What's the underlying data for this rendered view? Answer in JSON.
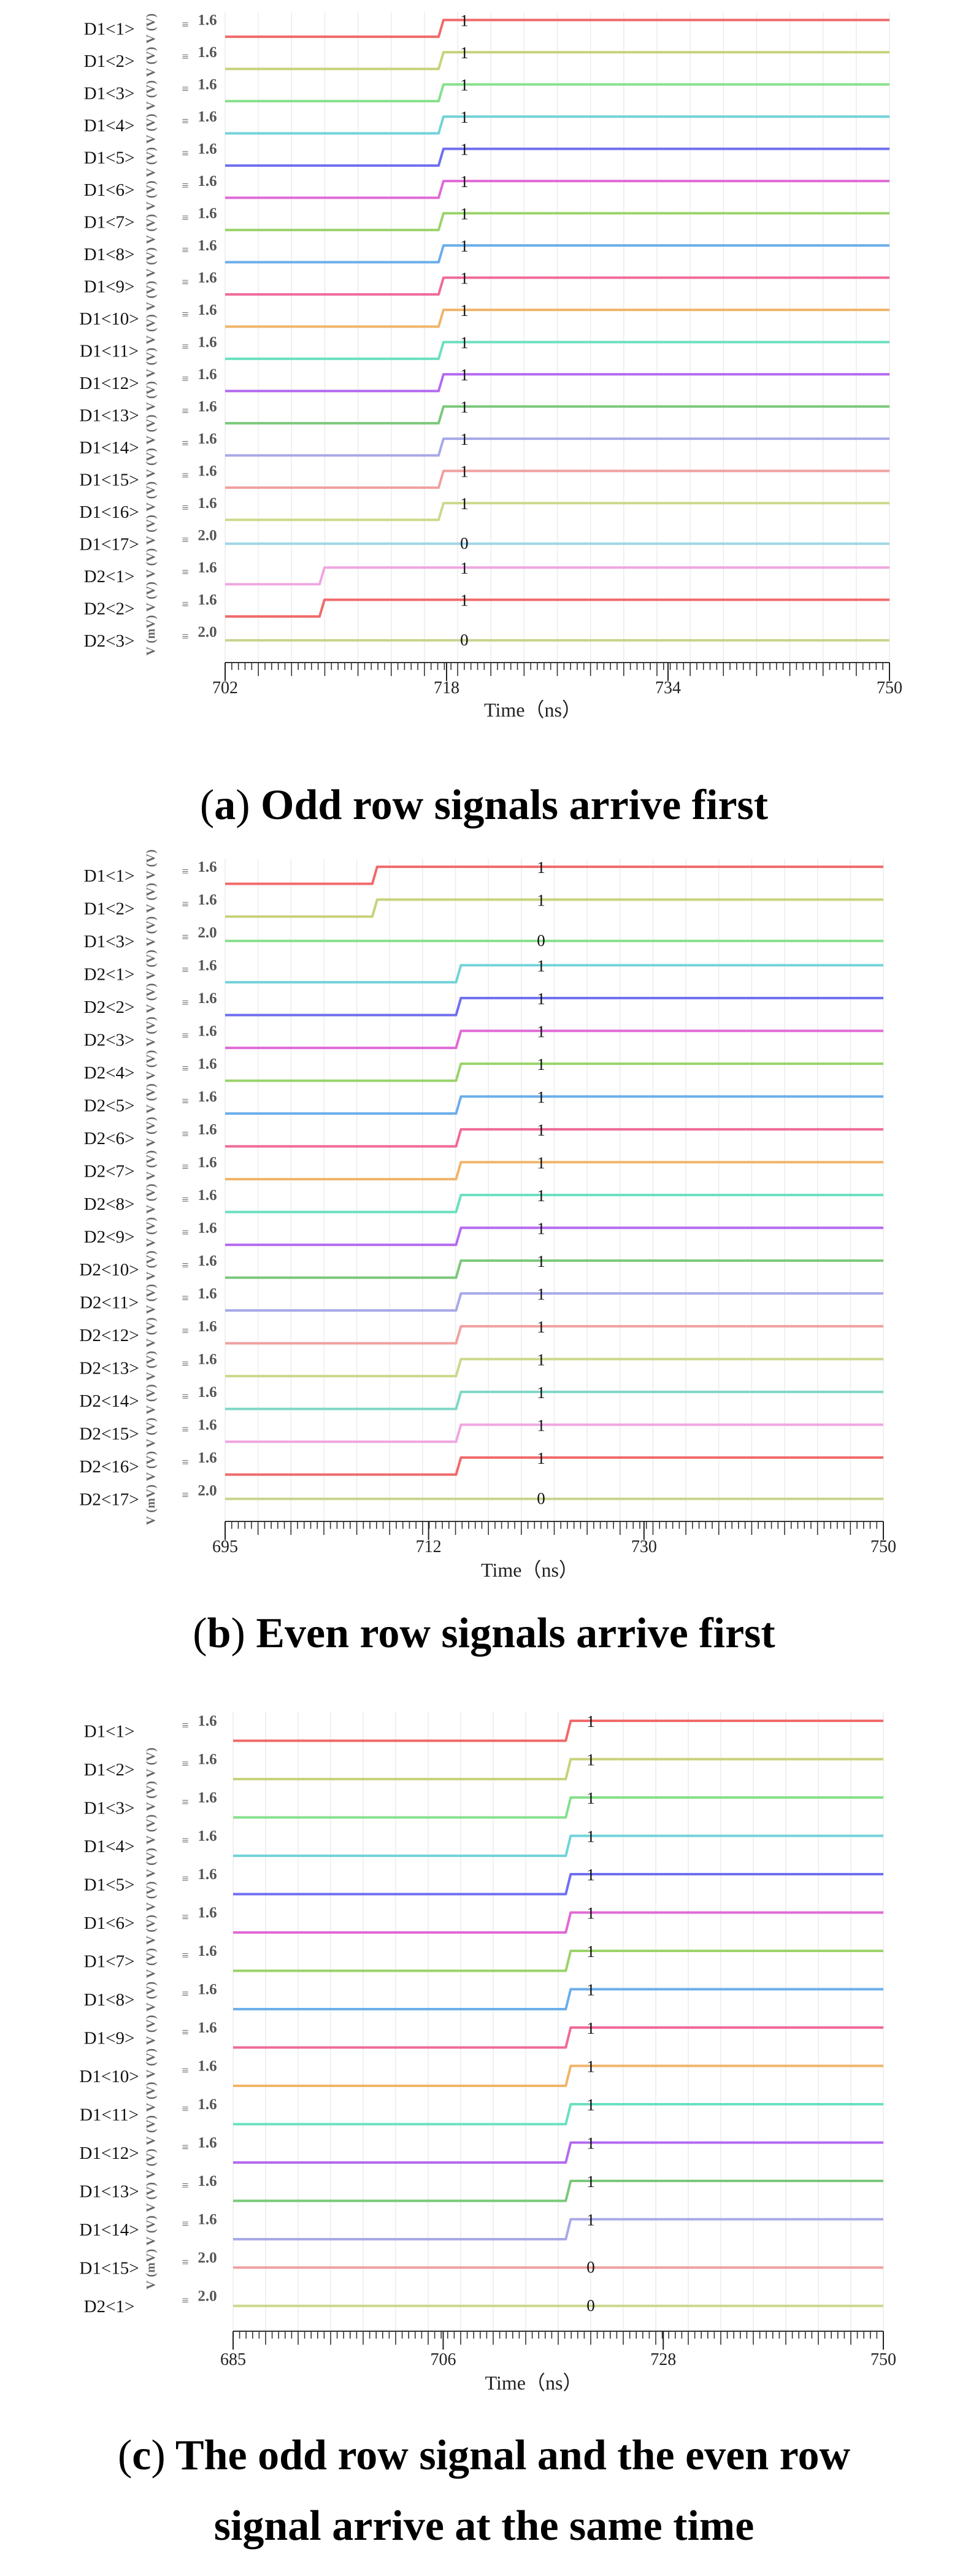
{
  "chart_data": [
    {
      "id": "a",
      "type": "line",
      "caption_letter": "a",
      "caption_text": "Odd row signals arrive first",
      "xlabel": "Time（ns）",
      "xlim": [
        702,
        750
      ],
      "xticks": [
        702,
        718,
        734,
        750
      ],
      "ylabel": "V (mV)  V (V)  V (V)  V (V)  V (V)  V (V)  V (V)  V (V)  V (V)  V (V)  V (V)  V (V)  V (V)  V (V)  V (V)  V (V)  V (V)  V (V)  V (V)",
      "series": [
        {
          "name": "D1<1>",
          "level": "1.6",
          "t_rise": 717.6,
          "final": "1",
          "color": "#f06a6a"
        },
        {
          "name": "D1<2>",
          "level": "1.6",
          "t_rise": 717.6,
          "final": "1",
          "color": "#c8d27a"
        },
        {
          "name": "D1<3>",
          "level": "1.6",
          "t_rise": 717.6,
          "final": "1",
          "color": "#86e08c"
        },
        {
          "name": "D1<4>",
          "level": "1.6",
          "t_rise": 717.6,
          "final": "1",
          "color": "#72d3d9"
        },
        {
          "name": "D1<5>",
          "level": "1.6",
          "t_rise": 717.6,
          "final": "1",
          "color": "#6f6ff0"
        },
        {
          "name": "D1<6>",
          "level": "1.6",
          "t_rise": 717.6,
          "final": "1",
          "color": "#e06ad6"
        },
        {
          "name": "D1<7>",
          "level": "1.6",
          "t_rise": 717.6,
          "final": "1",
          "color": "#9ad36a"
        },
        {
          "name": "D1<8>",
          "level": "1.6",
          "t_rise": 717.6,
          "final": "1",
          "color": "#6aaeea"
        },
        {
          "name": "D1<9>",
          "level": "1.6",
          "t_rise": 717.6,
          "final": "1",
          "color": "#f06a9a"
        },
        {
          "name": "D1<10>",
          "level": "1.6",
          "t_rise": 717.6,
          "final": "1",
          "color": "#f0b46a"
        },
        {
          "name": "D1<11>",
          "level": "1.6",
          "t_rise": 717.6,
          "final": "1",
          "color": "#6ae0c0"
        },
        {
          "name": "D1<12>",
          "level": "1.6",
          "t_rise": 717.6,
          "final": "1",
          "color": "#b46af0"
        },
        {
          "name": "D1<13>",
          "level": "1.6",
          "t_rise": 717.6,
          "final": "1",
          "color": "#7ac87a"
        },
        {
          "name": "D1<14>",
          "level": "1.6",
          "t_rise": 717.6,
          "final": "1",
          "color": "#a8a8e8"
        },
        {
          "name": "D1<15>",
          "level": "1.6",
          "t_rise": 717.6,
          "final": "1",
          "color": "#f0a0a0"
        },
        {
          "name": "D1<16>",
          "level": "1.6",
          "t_rise": 717.6,
          "final": "1",
          "color": "#cdd88c"
        },
        {
          "name": "D1<17>",
          "level": "2.0",
          "t_rise": null,
          "final": "0",
          "color": "#9fd6e6"
        },
        {
          "name": "D2<1>",
          "level": "1.6",
          "t_rise": 709.0,
          "final": "1",
          "color": "#f0a6e0"
        },
        {
          "name": "D2<2>",
          "level": "1.6",
          "t_rise": 709.0,
          "final": "1",
          "color": "#f06a6a"
        },
        {
          "name": "D2<3>",
          "level": "2.0",
          "t_rise": null,
          "final": "0",
          "color": "#c8d48c"
        }
      ]
    },
    {
      "id": "b",
      "type": "line",
      "caption_letter": "b",
      "caption_text": "Even row signals arrive first",
      "xlabel": "Time（ns）",
      "xlim": [
        695,
        750
      ],
      "xticks": [
        695,
        712,
        730,
        750
      ],
      "ylabel": "V (mV)  V (V)  V (V)  V (V)  V (V)  V (V)  V (V)  V (V)  V (V)  V (V)  V (V)  V (V)  V (V)  V (V)  V (V)  V (V)  V (V)  V (V)  V (V)  V (V)",
      "series": [
        {
          "name": "D1<1>",
          "level": "1.6",
          "t_rise": 707.5,
          "final": "1",
          "color": "#f06a6a"
        },
        {
          "name": "D1<2>",
          "level": "1.6",
          "t_rise": 707.5,
          "final": "1",
          "color": "#c8d27a"
        },
        {
          "name": "D1<3>",
          "level": "2.0",
          "t_rise": null,
          "final": "0",
          "color": "#86e08c"
        },
        {
          "name": "D2<1>",
          "level": "1.6",
          "t_rise": 714.5,
          "final": "1",
          "color": "#72d3d9"
        },
        {
          "name": "D2<2>",
          "level": "1.6",
          "t_rise": 714.5,
          "final": "1",
          "color": "#6f6ff0"
        },
        {
          "name": "D2<3>",
          "level": "1.6",
          "t_rise": 714.5,
          "final": "1",
          "color": "#e06ad6"
        },
        {
          "name": "D2<4>",
          "level": "1.6",
          "t_rise": 714.5,
          "final": "1",
          "color": "#9ad36a"
        },
        {
          "name": "D2<5>",
          "level": "1.6",
          "t_rise": 714.5,
          "final": "1",
          "color": "#6aaeea"
        },
        {
          "name": "D2<6>",
          "level": "1.6",
          "t_rise": 714.5,
          "final": "1",
          "color": "#f06a9a"
        },
        {
          "name": "D2<7>",
          "level": "1.6",
          "t_rise": 714.5,
          "final": "1",
          "color": "#f0b46a"
        },
        {
          "name": "D2<8>",
          "level": "1.6",
          "t_rise": 714.5,
          "final": "1",
          "color": "#6ae0c0"
        },
        {
          "name": "D2<9>",
          "level": "1.6",
          "t_rise": 714.5,
          "final": "1",
          "color": "#b46af0"
        },
        {
          "name": "D2<10>",
          "level": "1.6",
          "t_rise": 714.5,
          "final": "1",
          "color": "#7ac87a"
        },
        {
          "name": "D2<11>",
          "level": "1.6",
          "t_rise": 714.5,
          "final": "1",
          "color": "#a8a8e8"
        },
        {
          "name": "D2<12>",
          "level": "1.6",
          "t_rise": 714.5,
          "final": "1",
          "color": "#f0a0a0"
        },
        {
          "name": "D2<13>",
          "level": "1.6",
          "t_rise": 714.5,
          "final": "1",
          "color": "#cdd88c"
        },
        {
          "name": "D2<14>",
          "level": "1.6",
          "t_rise": 714.5,
          "final": "1",
          "color": "#7fd6c8"
        },
        {
          "name": "D2<15>",
          "level": "1.6",
          "t_rise": 714.5,
          "final": "1",
          "color": "#f0a6e0"
        },
        {
          "name": "D2<16>",
          "level": "1.6",
          "t_rise": 714.5,
          "final": "1",
          "color": "#f06a6a"
        },
        {
          "name": "D2<17>",
          "level": "2.0",
          "t_rise": null,
          "final": "0",
          "color": "#c8d48c"
        }
      ]
    },
    {
      "id": "c",
      "type": "line",
      "caption_letter": "c",
      "caption_text": "The odd row signal and the even row",
      "caption_text_line2": "signal arrive at the same time",
      "xlabel": "Time（ns）",
      "xlim": [
        685,
        750
      ],
      "xticks": [
        685,
        706,
        728,
        750
      ],
      "ylabel": "V (mV)  V (V)  V (V)  V (V)  V (V)  V (V)  V (V)  V (V)  V (V)  V (V)  V (V)  V (V)  V (V)  V (V)  V (V)  V (V)",
      "series": [
        {
          "name": "D1<1>",
          "level": "1.6",
          "t_rise": 718.5,
          "final": "1",
          "color": "#f06a6a"
        },
        {
          "name": "D1<2>",
          "level": "1.6",
          "t_rise": 718.5,
          "final": "1",
          "color": "#c8d27a"
        },
        {
          "name": "D1<3>",
          "level": "1.6",
          "t_rise": 718.5,
          "final": "1",
          "color": "#86e08c"
        },
        {
          "name": "D1<4>",
          "level": "1.6",
          "t_rise": 718.5,
          "final": "1",
          "color": "#72d3d9"
        },
        {
          "name": "D1<5>",
          "level": "1.6",
          "t_rise": 718.5,
          "final": "1",
          "color": "#6f6ff0"
        },
        {
          "name": "D1<6>",
          "level": "1.6",
          "t_rise": 718.5,
          "final": "1",
          "color": "#e06ad6"
        },
        {
          "name": "D1<7>",
          "level": "1.6",
          "t_rise": 718.5,
          "final": "1",
          "color": "#9ad36a"
        },
        {
          "name": "D1<8>",
          "level": "1.6",
          "t_rise": 718.5,
          "final": "1",
          "color": "#6aaeea"
        },
        {
          "name": "D1<9>",
          "level": "1.6",
          "t_rise": 718.5,
          "final": "1",
          "color": "#f06a9a"
        },
        {
          "name": "D1<10>",
          "level": "1.6",
          "t_rise": 718.5,
          "final": "1",
          "color": "#f0b46a"
        },
        {
          "name": "D1<11>",
          "level": "1.6",
          "t_rise": 718.5,
          "final": "1",
          "color": "#6ae0c0"
        },
        {
          "name": "D1<12>",
          "level": "1.6",
          "t_rise": 718.5,
          "final": "1",
          "color": "#b46af0"
        },
        {
          "name": "D1<13>",
          "level": "1.6",
          "t_rise": 718.5,
          "final": "1",
          "color": "#7ac87a"
        },
        {
          "name": "D1<14>",
          "level": "1.6",
          "t_rise": 718.5,
          "final": "1",
          "color": "#a8a8e8"
        },
        {
          "name": "D1<15>",
          "level": "2.0",
          "t_rise": null,
          "final": "0",
          "color": "#f0a0a0"
        },
        {
          "name": "D2<1>",
          "level": "2.0",
          "t_rise": null,
          "final": "0",
          "color": "#cdd88c"
        }
      ]
    }
  ]
}
